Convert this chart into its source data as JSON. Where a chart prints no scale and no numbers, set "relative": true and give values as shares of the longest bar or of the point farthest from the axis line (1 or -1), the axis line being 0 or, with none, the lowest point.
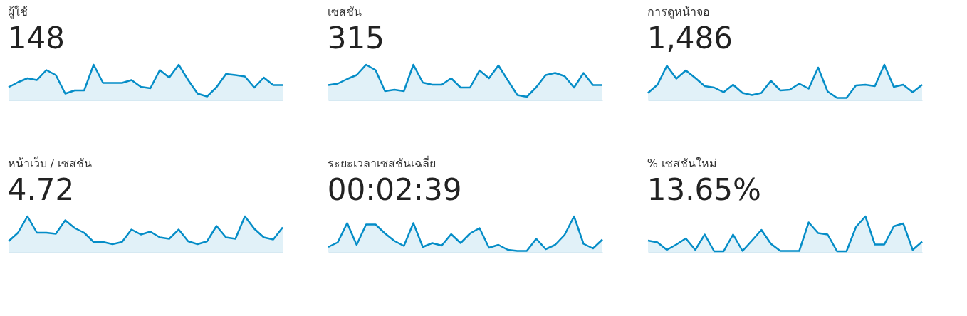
{
  "chart_data": [
    {
      "type": "area",
      "title": "ผู้ใช้",
      "subtitle": "148",
      "relative": true,
      "categories": [
        null,
        null,
        null,
        null,
        null,
        null,
        null,
        null,
        null,
        null,
        null,
        null,
        null,
        null,
        null,
        null,
        null,
        null,
        null,
        null,
        null,
        null,
        null,
        null,
        null,
        null,
        null,
        null,
        null,
        null
      ],
      "series": [
        {
          "color": "#058dc7",
          "values": [
            0.37,
            0.51,
            0.62,
            0.57,
            0.85,
            0.71,
            0.19,
            0.28,
            0.28,
            1,
            0.49,
            0.49,
            0.49,
            0.57,
            0.38,
            0.34,
            0.85,
            0.64,
            1,
            0.57,
            0.19,
            0.11,
            0.37,
            0.74,
            0.71,
            0.67,
            0.36,
            0.64,
            0.43,
            0.43
          ]
        }
      ]
    },
    {
      "type": "area",
      "title": "เซสชัน",
      "subtitle": "315",
      "relative": true,
      "categories": [
        null,
        null,
        null,
        null,
        null,
        null,
        null,
        null,
        null,
        null,
        null,
        null,
        null,
        null,
        null,
        null,
        null,
        null,
        null,
        null,
        null,
        null,
        null,
        null,
        null,
        null,
        null,
        null,
        null,
        null
      ],
      "series": [
        {
          "color": "#058dc7",
          "values": [
            0.43,
            0.47,
            0.6,
            0.71,
            1,
            0.85,
            0.26,
            0.3,
            0.26,
            1,
            0.5,
            0.44,
            0.44,
            0.62,
            0.36,
            0.36,
            0.84,
            0.62,
            0.98,
            0.56,
            0.15,
            0.1,
            0.37,
            0.71,
            0.77,
            0.68,
            0.36,
            0.77,
            0.43,
            0.43
          ]
        }
      ]
    },
    {
      "type": "area",
      "title": "การดูหน้าจอ",
      "subtitle": "1,486",
      "relative": true,
      "categories": [
        null,
        null,
        null,
        null,
        null,
        null,
        null,
        null,
        null,
        null,
        null,
        null,
        null,
        null,
        null,
        null,
        null,
        null,
        null,
        null,
        null,
        null,
        null,
        null,
        null,
        null,
        null,
        null,
        null,
        null
      ],
      "series": [
        {
          "color": "#058dc7",
          "values": [
            0.21,
            0.44,
            0.97,
            0.61,
            0.84,
            0.63,
            0.4,
            0.36,
            0.23,
            0.44,
            0.21,
            0.15,
            0.21,
            0.55,
            0.28,
            0.3,
            0.47,
            0.33,
            0.92,
            0.25,
            0.07,
            0.07,
            0.42,
            0.44,
            0.4,
            1,
            0.38,
            0.44,
            0.23,
            0.44
          ]
        }
      ]
    },
    {
      "type": "area",
      "title": "หน้าเว็บ / เซสชัน",
      "subtitle": "4.72",
      "relative": true,
      "categories": [
        null,
        null,
        null,
        null,
        null,
        null,
        null,
        null,
        null,
        null,
        null,
        null,
        null,
        null,
        null,
        null,
        null,
        null,
        null,
        null,
        null,
        null,
        null,
        null,
        null,
        null,
        null,
        null,
        null,
        null
      ],
      "series": [
        {
          "color": "#058dc7",
          "values": [
            0.3,
            0.54,
            1,
            0.54,
            0.54,
            0.51,
            0.89,
            0.67,
            0.54,
            0.28,
            0.28,
            0.22,
            0.28,
            0.63,
            0.49,
            0.57,
            0.41,
            0.37,
            0.63,
            0.3,
            0.22,
            0.3,
            0.73,
            0.41,
            0.37,
            1,
            0.65,
            0.41,
            0.35,
            0.69
          ]
        }
      ]
    },
    {
      "type": "area",
      "title": "ระยะเวลาเซสชันเฉลี่ย",
      "subtitle": "00:02:39",
      "relative": true,
      "categories": [
        null,
        null,
        null,
        null,
        null,
        null,
        null,
        null,
        null,
        null,
        null,
        null,
        null,
        null,
        null,
        null,
        null,
        null,
        null,
        null,
        null,
        null,
        null,
        null,
        null,
        null,
        null,
        null,
        null,
        null
      ],
      "series": [
        {
          "color": "#058dc7",
          "values": [
            0.14,
            0.27,
            0.81,
            0.2,
            0.77,
            0.77,
            0.52,
            0.31,
            0.17,
            0.81,
            0.14,
            0.25,
            0.18,
            0.5,
            0.25,
            0.52,
            0.67,
            0.12,
            0.2,
            0.06,
            0.03,
            0.03,
            0.37,
            0.08,
            0.2,
            0.48,
            1,
            0.23,
            0.1,
            0.35
          ]
        }
      ]
    },
    {
      "type": "area",
      "title": "% เซสชันใหม่",
      "subtitle": "13.65%",
      "relative": true,
      "categories": [
        null,
        null,
        null,
        null,
        null,
        null,
        null,
        null,
        null,
        null,
        null,
        null,
        null,
        null,
        null,
        null,
        null,
        null,
        null,
        null,
        null,
        null,
        null,
        null,
        null,
        null,
        null,
        null,
        null,
        null
      ],
      "series": [
        {
          "color": "#058dc7",
          "values": [
            0.32,
            0.27,
            0.06,
            0.21,
            0.38,
            0.06,
            0.49,
            0.02,
            0.02,
            0.49,
            0.03,
            0.32,
            0.62,
            0.23,
            0.03,
            0.03,
            0.03,
            0.83,
            0.53,
            0.49,
            0.02,
            0.02,
            0.7,
            1,
            0.21,
            0.21,
            0.72,
            0.8,
            0.06,
            0.29
          ]
        }
      ]
    }
  ]
}
